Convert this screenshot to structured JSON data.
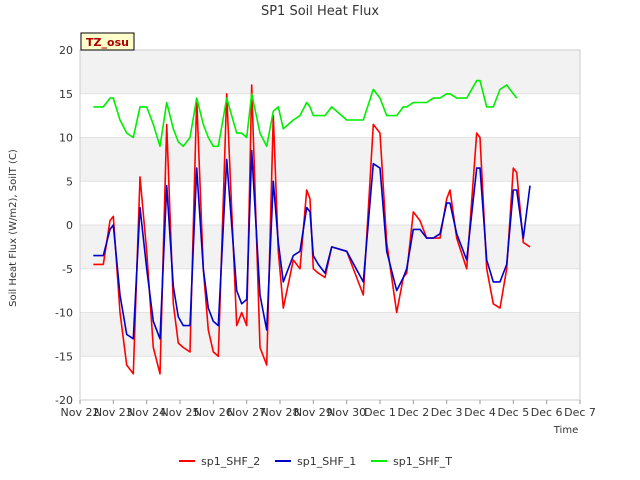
{
  "chart_data": {
    "type": "line",
    "title": "SP1 Soil Heat Flux",
    "xlabel": "Time",
    "ylabel": "Soil Heat Flux (W/m2), SoilT (C)",
    "badge": "TZ_osu",
    "ylim": [
      -20,
      20
    ],
    "yticks": [
      -20,
      -15,
      -10,
      -5,
      0,
      5,
      10,
      15,
      20
    ],
    "xlim": [
      0,
      15
    ],
    "xtick_values": [
      0,
      1,
      2,
      3,
      4,
      5,
      6,
      7,
      8,
      9,
      10,
      11,
      12,
      13,
      14,
      15
    ],
    "xtick_labels": [
      "Nov 22",
      "Nov 23",
      "Nov 24",
      "Nov 25",
      "Nov 26",
      "Nov 27",
      "Nov 28",
      "Nov 29",
      "Nov 30",
      "Dec 1",
      "Dec 2",
      "Dec 3",
      "Dec 4",
      "Dec 5",
      "Dec 6",
      "Dec 7"
    ],
    "grid": "horizontal bands",
    "legend_position": "bottom",
    "series": [
      {
        "name": "sp1_SHF_2",
        "color": "#ff0000",
        "x": [
          0.4,
          0.7,
          0.9,
          1.0,
          1.2,
          1.4,
          1.6,
          1.8,
          2.0,
          2.2,
          2.4,
          2.6,
          2.8,
          2.95,
          3.1,
          3.3,
          3.5,
          3.7,
          3.85,
          4.0,
          4.15,
          4.4,
          4.7,
          4.85,
          5.0,
          5.15,
          5.4,
          5.6,
          5.8,
          5.95,
          6.1,
          6.4,
          6.6,
          6.8,
          6.9,
          7.0,
          7.15,
          7.35,
          7.55,
          8.0,
          8.5,
          8.8,
          9.0,
          9.2,
          9.5,
          9.7,
          9.8,
          10.0,
          10.2,
          10.4,
          10.6,
          10.8,
          11.0,
          11.1,
          11.3,
          11.6,
          11.9,
          12.0,
          12.2,
          12.4,
          12.6,
          12.8,
          13.0,
          13.1,
          13.3,
          13.5,
          13.7,
          13.85,
          14.0,
          14.15,
          14.3,
          14.5
        ],
        "y": [
          -4.5,
          -4.5,
          0.5,
          1.0,
          -10.0,
          -16.0,
          -17.0,
          5.5,
          -3.0,
          -14.0,
          -17.0,
          11.5,
          -9.0,
          -13.5,
          -14.0,
          -14.5,
          14.5,
          -5.0,
          -12.0,
          -14.5,
          -15.0,
          15.0,
          -11.5,
          -10.0,
          -11.5,
          16.0,
          -14.0,
          -16.0,
          12.5,
          -3.0,
          -9.5,
          -4.0,
          -5.0,
          4.0,
          3.0,
          -5.0,
          -5.5,
          -6.0,
          -2.5,
          -3.0,
          -8.0,
          11.5,
          10.5,
          -2.0,
          -10.0,
          -6.0,
          -5.5,
          1.5,
          0.5,
          -1.5,
          -1.5,
          -1.5,
          3.0,
          4.0,
          -1.5,
          -5.0,
          10.5,
          10.0,
          -5.0,
          -9.0,
          -9.5,
          -5.0,
          6.5,
          6.0,
          -2.0,
          -2.5,
          null,
          null,
          null,
          null,
          null,
          null
        ]
      },
      {
        "name": "sp1_SHF_1",
        "color": "#0000cc",
        "x": [
          0.4,
          0.7,
          0.9,
          1.0,
          1.2,
          1.4,
          1.6,
          1.8,
          2.0,
          2.2,
          2.4,
          2.6,
          2.8,
          2.95,
          3.1,
          3.3,
          3.5,
          3.7,
          3.85,
          4.0,
          4.15,
          4.4,
          4.7,
          4.85,
          5.0,
          5.15,
          5.4,
          5.6,
          5.8,
          5.95,
          6.1,
          6.4,
          6.6,
          6.8,
          6.9,
          7.0,
          7.15,
          7.35,
          7.55,
          8.0,
          8.5,
          8.8,
          9.0,
          9.2,
          9.5,
          9.7,
          9.8,
          10.0,
          10.2,
          10.4,
          10.6,
          10.8,
          11.0,
          11.1,
          11.3,
          11.6,
          11.9,
          12.0,
          12.2,
          12.4,
          12.6,
          12.8,
          13.0,
          13.1,
          13.3,
          13.5,
          13.7,
          13.85,
          14.0,
          14.15,
          14.3,
          14.5
        ],
        "y": [
          -3.5,
          -3.5,
          -0.5,
          0.0,
          -8.0,
          -12.5,
          -13.0,
          2.0,
          -5.0,
          -11.0,
          -13.0,
          4.5,
          -7.0,
          -10.5,
          -11.5,
          -11.5,
          6.5,
          -5.0,
          -9.5,
          -11.0,
          -11.5,
          7.5,
          -7.5,
          -9.0,
          -8.5,
          8.5,
          -8.0,
          -12.0,
          5.0,
          -2.0,
          -6.5,
          -3.5,
          -3.0,
          2.0,
          1.5,
          -3.5,
          -4.5,
          -5.5,
          -2.5,
          -3.0,
          -6.5,
          7.0,
          6.5,
          -3.0,
          -7.5,
          -6.0,
          -5.0,
          -0.5,
          -0.5,
          -1.5,
          -1.5,
          -1.0,
          2.5,
          2.5,
          -1.0,
          -4.0,
          6.5,
          6.5,
          -4.0,
          -6.5,
          -6.5,
          -4.5,
          4.0,
          4.0,
          -1.5,
          4.5,
          null,
          null,
          null,
          null,
          null,
          null
        ]
      },
      {
        "name": "sp1_SHF_T",
        "color": "#00ee00",
        "x": [
          0.4,
          0.7,
          0.9,
          1.0,
          1.2,
          1.4,
          1.6,
          1.8,
          2.0,
          2.2,
          2.4,
          2.6,
          2.8,
          2.95,
          3.1,
          3.3,
          3.5,
          3.7,
          3.85,
          4.0,
          4.15,
          4.4,
          4.7,
          4.85,
          5.0,
          5.15,
          5.4,
          5.6,
          5.8,
          5.95,
          6.1,
          6.4,
          6.6,
          6.8,
          6.9,
          7.0,
          7.15,
          7.35,
          7.55,
          8.0,
          8.5,
          8.8,
          9.0,
          9.2,
          9.5,
          9.7,
          9.8,
          10.0,
          10.2,
          10.4,
          10.6,
          10.8,
          11.0,
          11.1,
          11.3,
          11.6,
          11.9,
          12.0,
          12.2,
          12.4,
          12.6,
          12.8,
          13.0,
          13.1,
          13.3,
          13.5,
          13.7,
          13.85,
          14.0,
          14.15,
          14.3,
          14.5
        ],
        "y": [
          13.5,
          13.5,
          14.5,
          14.5,
          12.0,
          10.5,
          10.0,
          13.5,
          13.5,
          11.5,
          9.0,
          14.0,
          11.0,
          9.5,
          9.0,
          10.0,
          14.5,
          11.5,
          10.0,
          9.0,
          9.0,
          14.5,
          10.5,
          10.5,
          10.0,
          15.0,
          10.5,
          9.0,
          13.0,
          13.5,
          11.0,
          12.0,
          12.5,
          14.0,
          13.5,
          12.5,
          12.5,
          12.5,
          13.5,
          12.0,
          12.0,
          15.5,
          14.5,
          12.5,
          12.5,
          13.5,
          13.5,
          14.0,
          14.0,
          14.0,
          14.5,
          14.5,
          15.0,
          15.0,
          14.5,
          14.5,
          16.5,
          16.5,
          13.5,
          13.5,
          15.5,
          16.0,
          15.0,
          14.5,
          null,
          null,
          null,
          null,
          null,
          null,
          null,
          null
        ]
      }
    ]
  }
}
